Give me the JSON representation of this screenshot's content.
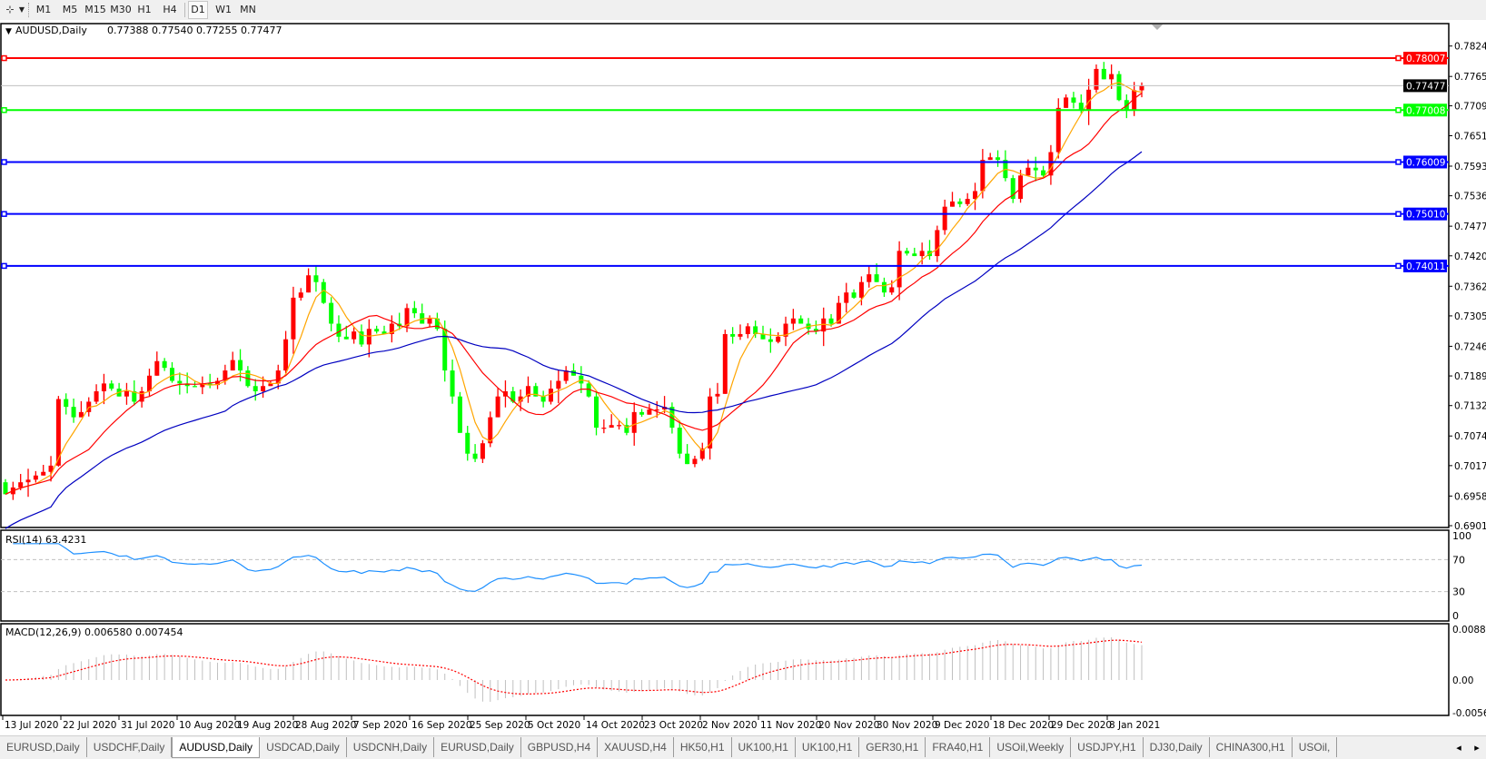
{
  "toolbar": {
    "timeframes": [
      "M1",
      "M5",
      "M15",
      "M30",
      "H1",
      "H4",
      "D1",
      "W1",
      "MN"
    ],
    "active": "D1",
    "icon": "crosshair-cursor-icon"
  },
  "chart": {
    "symbol": "AUDUSD,Daily",
    "ohlc": "0.77388 0.77540 0.77255 0.77477"
  },
  "chart_data": {
    "type": "candlestick",
    "up_color": "#ff0000",
    "down_color": "#00ff00",
    "closes": [
      0.6962,
      0.6975,
      0.6985,
      0.699,
      0.6998,
      0.7005,
      0.7017,
      0.7145,
      0.713,
      0.711,
      0.712,
      0.714,
      0.716,
      0.7175,
      0.7165,
      0.715,
      0.716,
      0.714,
      0.716,
      0.719,
      0.7218,
      0.7205,
      0.718,
      0.7175,
      0.717,
      0.7168,
      0.7175,
      0.7172,
      0.718,
      0.72,
      0.722,
      0.72,
      0.717,
      0.716,
      0.717,
      0.7175,
      0.72,
      0.726,
      0.734,
      0.735,
      0.7383,
      0.737,
      0.733,
      0.729,
      0.7265,
      0.726,
      0.7275,
      0.725,
      0.728,
      0.7275,
      0.727,
      0.729,
      0.7285,
      0.732,
      0.731,
      0.729,
      0.73,
      0.728,
      0.72,
      0.715,
      0.708,
      0.704,
      0.703,
      0.706,
      0.711,
      0.715,
      0.716,
      0.714,
      0.715,
      0.717,
      0.715,
      0.714,
      0.7165,
      0.718,
      0.72,
      0.719,
      0.7175,
      0.715,
      0.709,
      0.709,
      0.7095,
      0.7095,
      0.708,
      0.712,
      0.7115,
      0.7125,
      0.7125,
      0.713,
      0.709,
      0.704,
      0.702,
      0.703,
      0.705,
      0.715,
      0.7155,
      0.727,
      0.7265,
      0.727,
      0.7285,
      0.727,
      0.726,
      0.7255,
      0.7265,
      0.729,
      0.73,
      0.729,
      0.728,
      0.7275,
      0.73,
      0.729,
      0.733,
      0.735,
      0.734,
      0.737,
      0.7385,
      0.737,
      0.735,
      0.736,
      0.743,
      0.7425,
      0.742,
      0.743,
      0.742,
      0.747,
      0.7515,
      0.7525,
      0.752,
      0.753,
      0.7545,
      0.7605,
      0.761,
      0.7605,
      0.757,
      0.753,
      0.7575,
      0.759,
      0.7585,
      0.7575,
      0.762,
      0.7705,
      0.7725,
      0.7715,
      0.77,
      0.774,
      0.778,
      0.776,
      0.777,
      0.772,
      0.77,
      0.7739,
      0.77477
    ],
    "last_bar": {
      "open": 0.77388,
      "high": 0.7754,
      "low": 0.77255,
      "close": 0.77477
    },
    "moving_averages": [
      {
        "color": "#ffa500"
      },
      {
        "color": "#ff0000"
      },
      {
        "color": "#0000c0"
      }
    ],
    "price_ticks": [
      "0.78240",
      "0.77655",
      "0.77090",
      "0.76515",
      "0.75930",
      "0.75360",
      "0.74775",
      "0.74205",
      "0.73620",
      "0.73050",
      "0.72465",
      "0.71895",
      "0.71325",
      "0.70740",
      "0.70170",
      "0.69585",
      "0.69015"
    ],
    "ylim": [
      0.69015,
      0.7824
    ],
    "current_price": {
      "label": "0.77477",
      "color": "#000000"
    },
    "hlines": [
      {
        "label": "0.78007",
        "color": "#ff0000"
      },
      {
        "label": "0.77008",
        "color": "#00ff00"
      },
      {
        "label": "0.76009",
        "color": "#0000ff"
      },
      {
        "label": "0.75010",
        "color": "#0000ff"
      },
      {
        "label": "0.74011",
        "color": "#0000ff"
      }
    ],
    "date_labels": [
      "13 Jul 2020",
      "22 Jul 2020",
      "31 Jul 2020",
      "10 Aug 2020",
      "19 Aug 2020",
      "28 Aug 2020",
      "7 Sep 2020",
      "16 Sep 2020",
      "25 Sep 2020",
      "5 Oct 2020",
      "14 Oct 2020",
      "23 Oct 2020",
      "2 Nov 2020",
      "11 Nov 2020",
      "20 Nov 2020",
      "30 Nov 2020",
      "9 Dec 2020",
      "18 Dec 2020",
      "29 Dec 2020",
      "8 Jan 2021"
    ],
    "rsi": {
      "label": "RSI(14) 63.4231",
      "ticks": [
        "100",
        "70",
        "30",
        "0"
      ],
      "color": "#1e90ff"
    },
    "macd": {
      "label": "MACD(12,26,9) 0.006580 0.007454",
      "ticks": [
        "0.00884",
        "0.00",
        "-0.00565"
      ],
      "ylim": [
        -0.00565,
        0.00884
      ],
      "signal_color": "#ff0000",
      "hist_color": "#c0c0c0"
    }
  },
  "tabs": {
    "items": [
      "EURUSD,Daily",
      "USDCHF,Daily",
      "AUDUSD,Daily",
      "USDCAD,Daily",
      "USDCNH,Daily",
      "EURUSD,Daily",
      "GBPUSD,H4",
      "XAUUSD,H4",
      "HK50,H1",
      "UK100,H1",
      "UK100,H1",
      "GER30,H1",
      "FRA40,H1",
      "USOil,Weekly",
      "USDJPY,H1",
      "DJ30,Daily",
      "CHINA300,H1",
      "USOil,"
    ],
    "active": "AUDUSD,Daily",
    "scroll_left": "◂",
    "scroll_right": "▸"
  }
}
